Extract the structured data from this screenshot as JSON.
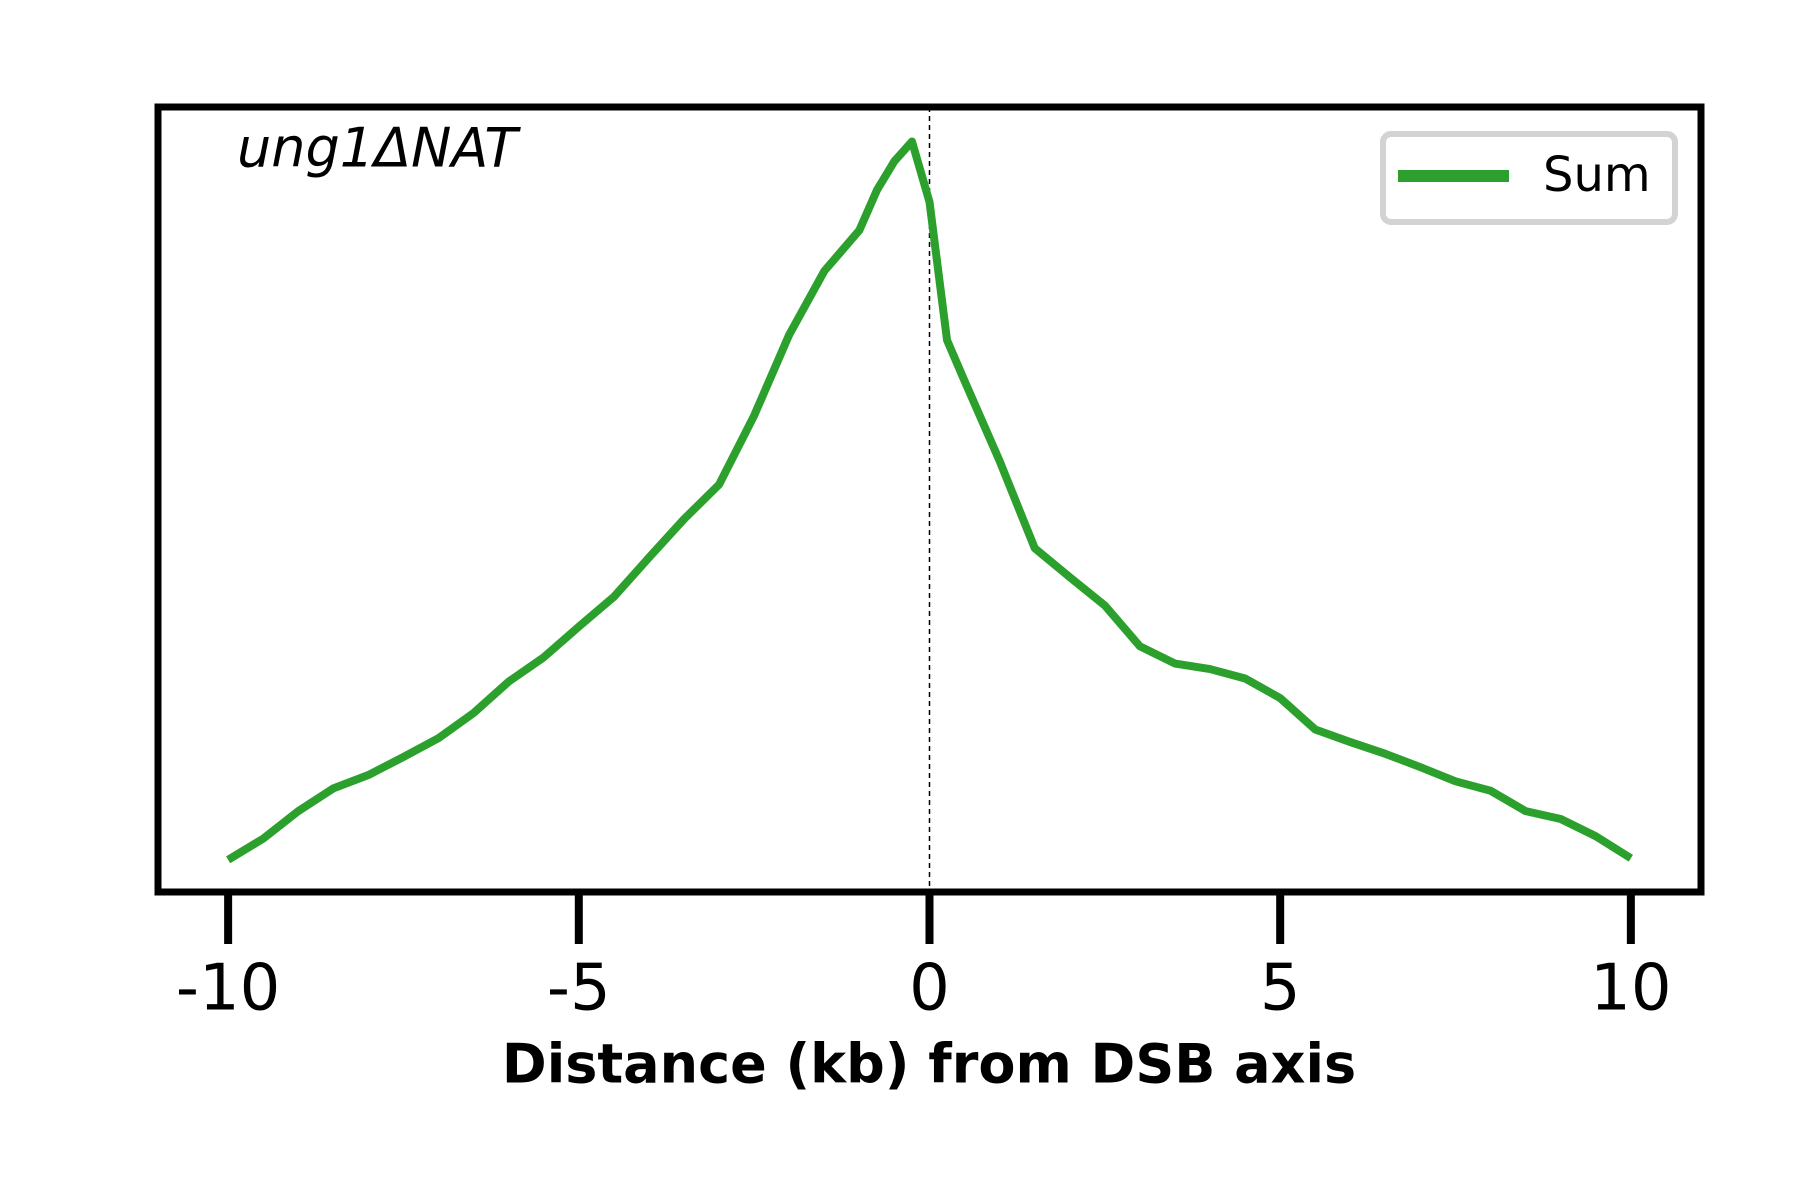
{
  "chart_data": {
    "type": "line",
    "annotation": "ung1ΔNAT",
    "xlabel": "Distance (kb) from DSB axis",
    "x": [
      -10,
      -9.5,
      -9,
      -8.5,
      -8,
      -7.5,
      -7,
      -6.5,
      -6,
      -5.5,
      -5,
      -4.5,
      -4,
      -3.5,
      -3,
      -2.5,
      -2,
      -1.5,
      -1,
      -0.75,
      -0.5,
      -0.25,
      0,
      0.25,
      0.5,
      1,
      1.5,
      2,
      2.5,
      3,
      3.5,
      4,
      4.5,
      5,
      5.5,
      6,
      6.5,
      7,
      7.5,
      8,
      8.5,
      9,
      9.5,
      10
    ],
    "series": [
      {
        "name": "Sum",
        "color": "#2ca02c",
        "values": [
          0.041,
          0.068,
          0.103,
          0.132,
          0.149,
          0.172,
          0.196,
          0.228,
          0.268,
          0.299,
          0.338,
          0.376,
          0.426,
          0.475,
          0.519,
          0.607,
          0.71,
          0.791,
          0.843,
          0.894,
          0.931,
          0.956,
          0.879,
          0.703,
          0.651,
          0.549,
          0.438,
          0.401,
          0.365,
          0.313,
          0.291,
          0.284,
          0.272,
          0.247,
          0.207,
          0.191,
          0.176,
          0.159,
          0.141,
          0.129,
          0.103,
          0.093,
          0.071,
          0.043
        ]
      }
    ],
    "xlim": [
      -11,
      11
    ],
    "ylim": [
      0,
      1
    ],
    "xticks": [
      -10,
      -5,
      0,
      5,
      10
    ],
    "vline": 0,
    "legend": "upper right"
  }
}
